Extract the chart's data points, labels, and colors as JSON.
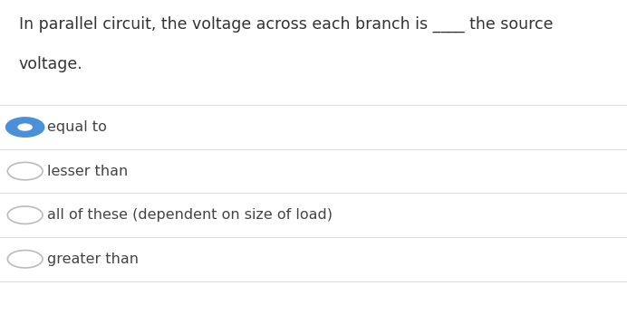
{
  "question_line1": "In parallel circuit, the voltage across each branch is ____ the source",
  "question_line2": "voltage.",
  "options": [
    {
      "text": "equal to",
      "selected": true
    },
    {
      "text": "lesser than",
      "selected": false
    },
    {
      "text": "all of these (dependent on size of load)",
      "selected": false
    },
    {
      "text": "greater than",
      "selected": false
    }
  ],
  "bg_color": "#ffffff",
  "text_color": "#444444",
  "question_color": "#333333",
  "selected_color": "#4a90d9",
  "unselected_color": "#bbbbbb",
  "divider_color": "#dddddd",
  "question_fontsize": 12.5,
  "option_fontsize": 11.5,
  "fig_width": 6.92,
  "fig_height": 3.47
}
